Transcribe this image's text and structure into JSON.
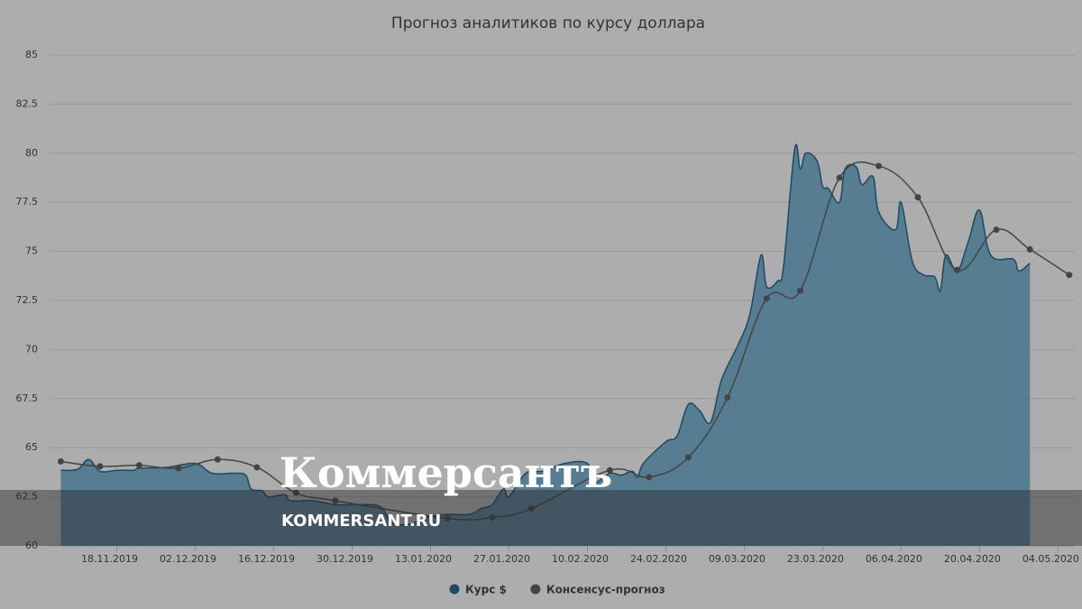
{
  "chart_data": {
    "type": "line",
    "title": "Прогноз аналитиков по курсу доллара",
    "xlim": [
      "06.11.2019",
      "07.05.2020"
    ],
    "xticks": [
      "18.11.2019",
      "02.12.2019",
      "16.12.2019",
      "30.12.2019",
      "13.01.2020",
      "27.01.2020",
      "10.02.2020",
      "24.02.2020",
      "09.03.2020",
      "23.03.2020",
      "06.04.2020",
      "20.04.2020",
      "04.05.2020"
    ],
    "ylim": [
      60,
      85
    ],
    "yticks": [
      60,
      62.5,
      65,
      67.5,
      70,
      72.5,
      75,
      77.5,
      80,
      82.5,
      85
    ],
    "grid": true,
    "legend": "bottom",
    "series": [
      {
        "name": "Курс $",
        "color": "#1d4a64",
        "area": true,
        "x": [
          "08.11.2019",
          "11.11.2019",
          "13.11.2019",
          "15.11.2019",
          "18.11.2019",
          "21.11.2019",
          "22.11.2019",
          "27.11.2019",
          "02.12.2019",
          "05.12.2019",
          "09.12.2019",
          "11.12.2019",
          "12.12.2019",
          "14.12.2019",
          "15.12.2019",
          "18.12.2019",
          "19.12.2019",
          "23.12.2019",
          "27.12.2019",
          "31.12.2019",
          "04.01.2020",
          "06.01.2020",
          "09.01.2020",
          "13.01.2020",
          "16.01.2020",
          "20.01.2020",
          "22.01.2020",
          "24.01.2020",
          "26.01.2020",
          "27.01.2020",
          "30.01.2020",
          "02.02.2020",
          "06.02.2020",
          "10.02.2020",
          "11.02.2020",
          "14.02.2020",
          "16.02.2020",
          "18.02.2020",
          "19.02.2020",
          "20.02.2020",
          "24.02.2020",
          "26.02.2020",
          "28.02.2020",
          "01.03.2020",
          "03.03.2020",
          "05.03.2020",
          "08.03.2020",
          "10.03.2020",
          "12.03.2020",
          "13.03.2020",
          "15.03.2020",
          "16.03.2020",
          "18.03.2020",
          "19.03.2020",
          "20.03.2020",
          "22.03.2020",
          "23.03.2020",
          "24.03.2020",
          "26.03.2020",
          "27.03.2020",
          "29.03.2020",
          "30.03.2020",
          "01.04.2020",
          "02.04.2020",
          "05.04.2020",
          "06.04.2020",
          "08.04.2020",
          "10.04.2020",
          "12.04.2020",
          "13.04.2020",
          "14.04.2020",
          "16.04.2020",
          "18.04.2020",
          "20.04.2020",
          "22.04.2020",
          "26.04.2020",
          "27.04.2020",
          "29.04.2020"
        ],
        "values": [
          63.85,
          63.9,
          64.4,
          63.8,
          63.85,
          63.85,
          63.95,
          64.0,
          64.2,
          63.7,
          63.7,
          63.6,
          62.9,
          62.8,
          62.5,
          62.6,
          62.3,
          62.3,
          62.1,
          62.1,
          62.0,
          61.2,
          61.1,
          61.5,
          61.6,
          61.6,
          61.9,
          62.1,
          62.9,
          62.5,
          63.7,
          63.8,
          64.2,
          64.2,
          63.2,
          63.7,
          63.6,
          63.8,
          63.5,
          64.2,
          65.3,
          65.6,
          67.2,
          66.9,
          66.3,
          68.5,
          70.3,
          71.8,
          74.8,
          73.2,
          73.5,
          74.2,
          80.2,
          79.2,
          80.0,
          79.6,
          78.3,
          78.2,
          77.5,
          79.2,
          79.3,
          78.4,
          78.8,
          77.0,
          76.1,
          77.5,
          74.5,
          73.8,
          73.7,
          73.0,
          74.8,
          74.0,
          75.5,
          77.1,
          74.8,
          74.6,
          74.0,
          74.4
        ]
      },
      {
        "name": "Консенсус-прогноз",
        "color": "#444444",
        "area": false,
        "x": [
          "08.11.2019",
          "15.11.2019",
          "22.11.2019",
          "29.11.2019",
          "06.12.2019",
          "13.12.2019",
          "20.12.2019",
          "27.12.2019",
          "16.01.2020",
          "24.01.2020",
          "31.01.2020",
          "14.02.2020",
          "21.02.2020",
          "28.02.2020",
          "06.03.2020",
          "13.03.2020",
          "19.03.2020",
          "26.03.2020",
          "02.04.2020",
          "09.04.2020",
          "16.04.2020",
          "23.04.2020",
          "29.04.2020",
          "06.05.2020"
        ],
        "values": [
          64.3,
          64.05,
          64.1,
          63.95,
          64.4,
          64.0,
          62.7,
          62.3,
          61.4,
          61.45,
          61.9,
          63.85,
          63.5,
          64.5,
          67.55,
          72.6,
          73.0,
          78.75,
          79.35,
          77.75,
          74.05,
          76.1,
          75.1,
          73.8
        ]
      }
    ],
    "watermark": {
      "title": "Коммерсантъ",
      "url": "KOMMERSANT.RU"
    }
  }
}
